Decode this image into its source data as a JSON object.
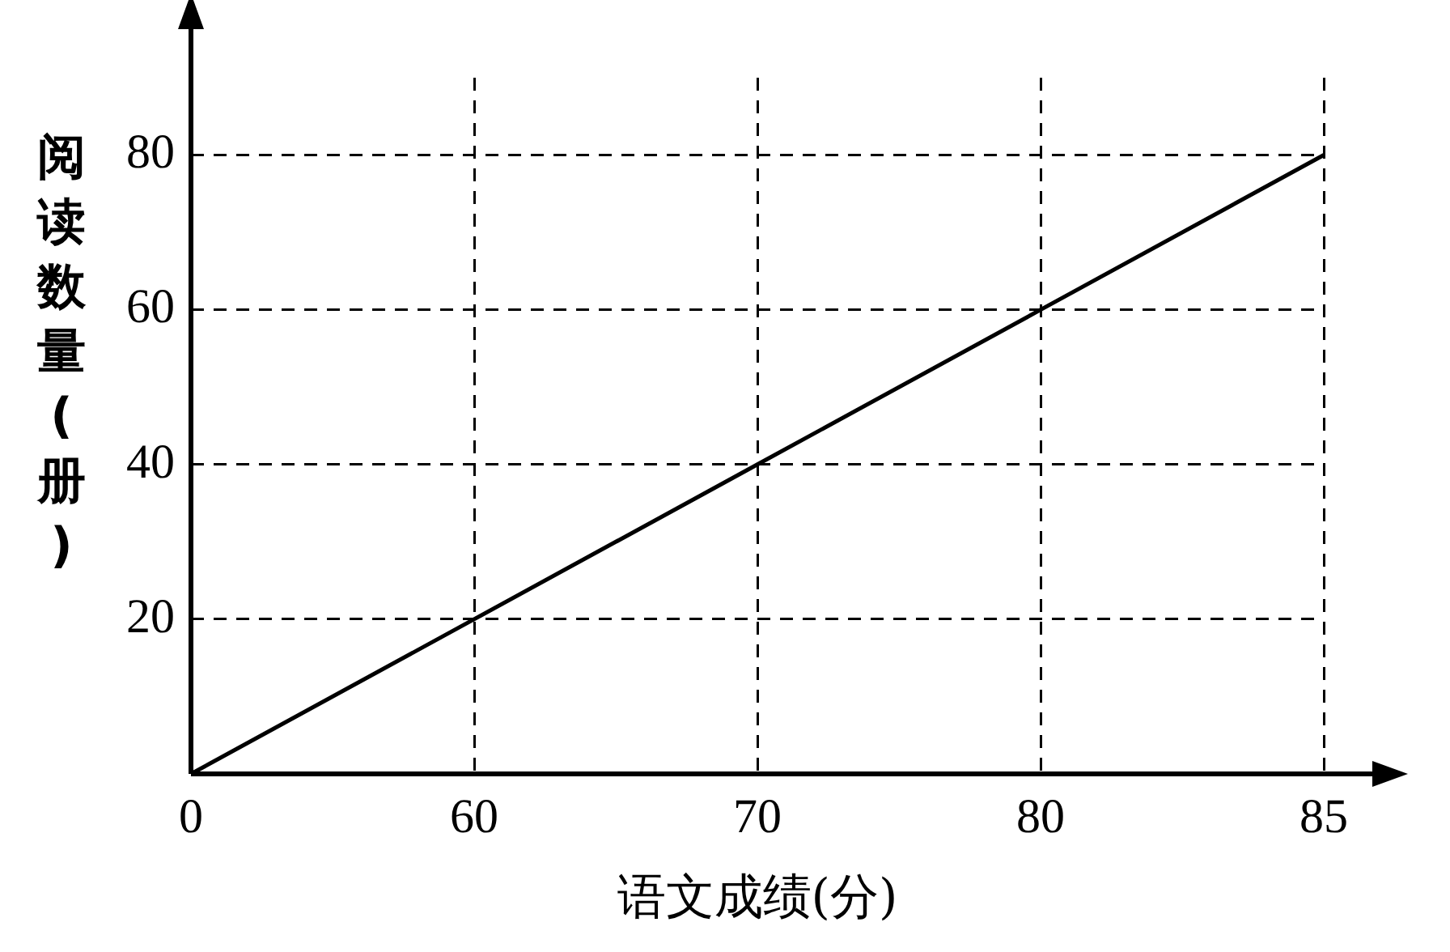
{
  "chart_data": {
    "type": "line",
    "xlabel": "语文成绩(分)",
    "ylabel": "阅读数量(册)",
    "categories": [
      "0",
      "60",
      "70",
      "80",
      "85"
    ],
    "series": [
      {
        "color": "#000000",
        "values": [
          0,
          20,
          40,
          60,
          80
        ]
      }
    ],
    "ylim": [
      0,
      90
    ],
    "yticks": [
      {
        "value": 0,
        "label": null
      },
      20,
      40,
      60,
      80
    ],
    "grid": true,
    "line_style": "solid",
    "marker": "none",
    "legend": false
  }
}
